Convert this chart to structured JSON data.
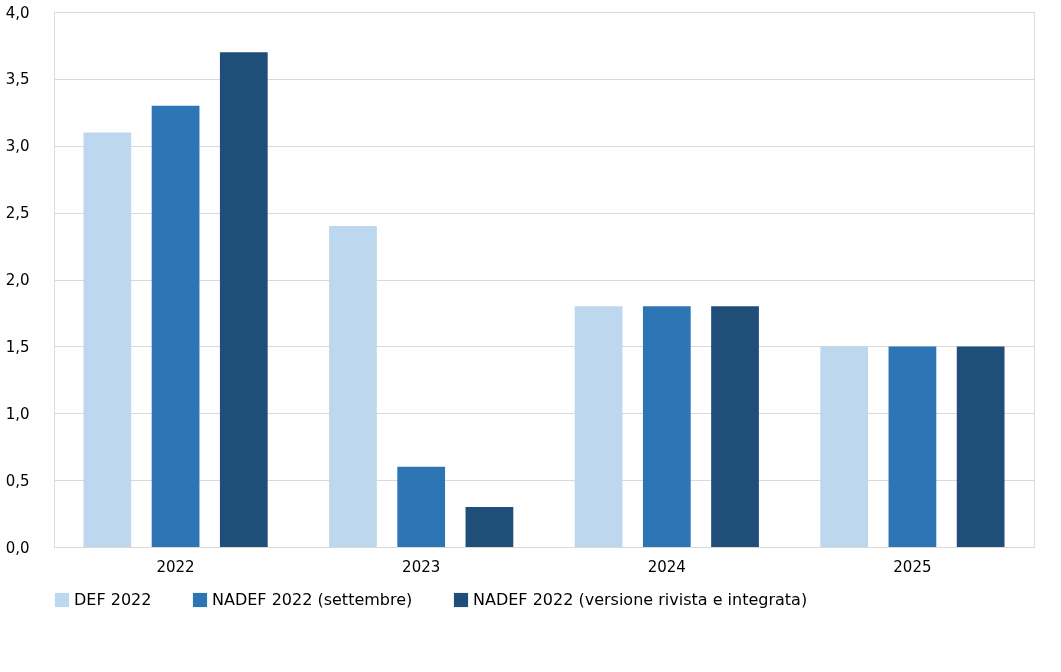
{
  "chart_data": {
    "type": "bar",
    "categories": [
      "2022",
      "2023",
      "2024",
      "2025"
    ],
    "series": [
      {
        "name": "DEF 2022",
        "color": "#bdd7ee",
        "values": [
          3.1,
          2.4,
          1.8,
          1.5
        ]
      },
      {
        "name": "NADEF 2022 (settembre)",
        "color": "#2e75b6",
        "values": [
          3.3,
          0.6,
          1.8,
          1.5
        ]
      },
      {
        "name": "NADEF 2022 (versione rivista e integrata)",
        "color": "#1f4e79",
        "values": [
          3.7,
          0.3,
          1.8,
          1.5
        ]
      }
    ],
    "ylim": [
      0,
      4
    ],
    "yticks": [
      {
        "value": 0,
        "label": "0,0"
      },
      {
        "value": 0.5,
        "label": "0,5"
      },
      {
        "value": 1,
        "label": "1,0"
      },
      {
        "value": 1.5,
        "label": "1,5"
      },
      {
        "value": 2,
        "label": "2,0"
      },
      {
        "value": 2.5,
        "label": "2,5"
      },
      {
        "value": 3,
        "label": "3,0"
      },
      {
        "value": 3.5,
        "label": "3,5"
      },
      {
        "value": 4,
        "label": "4,0"
      }
    ],
    "grid": "y",
    "legend": "bottom"
  }
}
